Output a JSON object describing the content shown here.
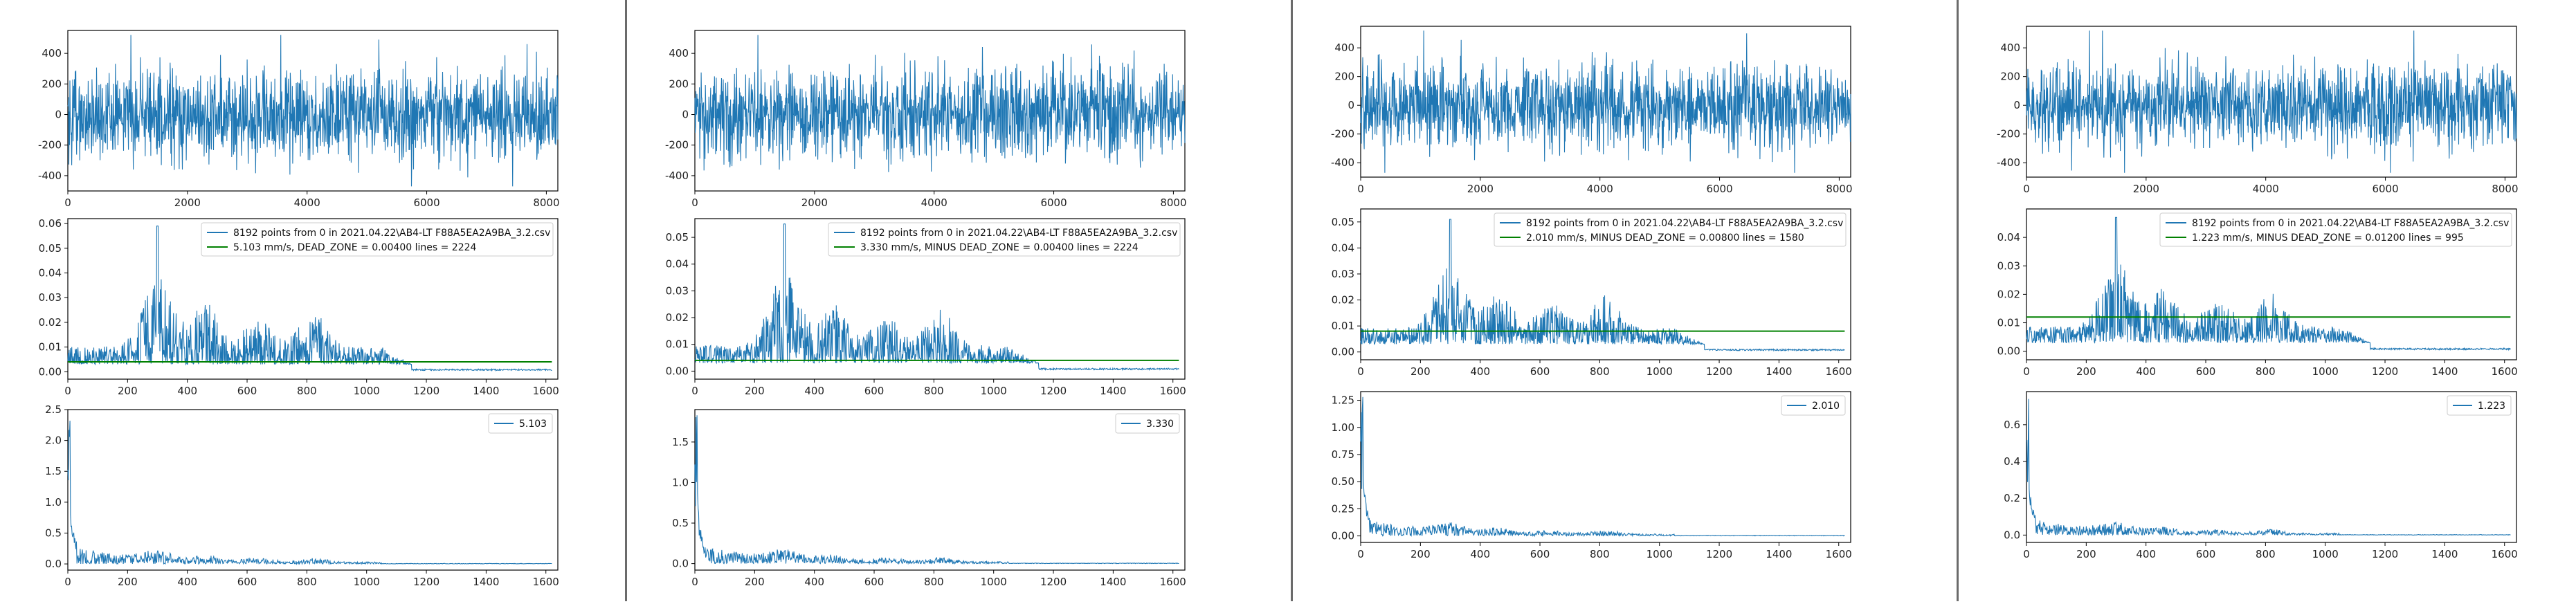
{
  "colors": {
    "series": "#1f77b4",
    "dead_zone": "#008000",
    "axes": "#000000",
    "divider": "#6b6b6b"
  },
  "panels": [
    {
      "signal": {
        "type": "line",
        "xlim": [
          0,
          8192
        ],
        "ylim": [
          -500,
          550
        ],
        "xticks": [
          "0",
          "2000",
          "4000",
          "6000",
          "8000"
        ],
        "yticks": [
          "-400",
          "-200",
          "0",
          "200",
          "400"
        ],
        "amplitude": 250,
        "peak": 520
      },
      "spectrum": {
        "type": "line",
        "xlim": [
          0,
          1640
        ],
        "ylim": [
          -0.003,
          0.062
        ],
        "xticks": [
          "0",
          "200",
          "400",
          "600",
          "800",
          "1000",
          "1200",
          "1400",
          "1600"
        ],
        "yticks": [
          "0.00",
          "0.01",
          "0.02",
          "0.03",
          "0.04",
          "0.05",
          "0.06"
        ],
        "dead_zone": 0.004,
        "peak": 0.059,
        "legend": [
          "8192 points from 0  in  2021.04.22\\AB4-LT F88A5EA2A9BA_3.2.csv",
          "5.103 mm/s,  DEAD_ZONE = 0.00400     lines = 2224"
        ]
      },
      "velocity": {
        "type": "line",
        "xlim": [
          0,
          1640
        ],
        "ylim": [
          -0.1,
          2.5
        ],
        "xticks": [
          "0",
          "200",
          "400",
          "600",
          "800",
          "1000",
          "1200",
          "1400",
          "1600"
        ],
        "yticks": [
          "0.0",
          "0.5",
          "1.0",
          "1.5",
          "2.0",
          "2.5"
        ],
        "peak": 2.32,
        "legend": [
          "5.103"
        ]
      }
    },
    {
      "signal": {
        "type": "line",
        "xlim": [
          0,
          8192
        ],
        "ylim": [
          -500,
          550
        ],
        "xticks": [
          "0",
          "2000",
          "4000",
          "6000",
          "8000"
        ],
        "yticks": [
          "-400",
          "-200",
          "0",
          "200",
          "400"
        ],
        "amplitude": 250,
        "peak": 520
      },
      "spectrum": {
        "type": "line",
        "xlim": [
          0,
          1640
        ],
        "ylim": [
          -0.003,
          0.057
        ],
        "xticks": [
          "0",
          "200",
          "400",
          "600",
          "800",
          "1000",
          "1200",
          "1400",
          "1600"
        ],
        "yticks": [
          "0.00",
          "0.01",
          "0.02",
          "0.03",
          "0.04",
          "0.05"
        ],
        "dead_zone": 0.004,
        "peak": 0.055,
        "legend": [
          "8192 points from 0  in  2021.04.22\\AB4-LT F88A5EA2A9BA_3.2.csv",
          "3.330 mm/s,  MINUS  DEAD_ZONE = 0.00400     lines = 2224"
        ]
      },
      "velocity": {
        "type": "line",
        "xlim": [
          0,
          1640
        ],
        "ylim": [
          -0.08,
          1.9
        ],
        "xticks": [
          "0",
          "200",
          "400",
          "600",
          "800",
          "1000",
          "1200",
          "1400",
          "1600"
        ],
        "yticks": [
          "0.0",
          "0.5",
          "1.0",
          "1.5"
        ],
        "peak": 1.83,
        "legend": [
          "3.330"
        ]
      }
    },
    {
      "signal": {
        "type": "line",
        "xlim": [
          0,
          8192
        ],
        "ylim": [
          -500,
          550
        ],
        "xticks": [
          "0",
          "2000",
          "4000",
          "6000",
          "8000"
        ],
        "yticks": [
          "-400",
          "-200",
          "0",
          "200",
          "400"
        ],
        "amplitude": 250,
        "peak": 520
      },
      "spectrum": {
        "type": "line",
        "xlim": [
          0,
          1640
        ],
        "ylim": [
          -0.003,
          0.055
        ],
        "xticks": [
          "0",
          "200",
          "400",
          "600",
          "800",
          "1000",
          "1200",
          "1400",
          "1600"
        ],
        "yticks": [
          "0.00",
          "0.01",
          "0.02",
          "0.03",
          "0.04",
          "0.05"
        ],
        "dead_zone": 0.008,
        "peak": 0.051,
        "legend": [
          "8192 points from 0  in  2021.04.22\\AB4-LT F88A5EA2A9BA_3.2.csv",
          "2.010 mm/s,  MINUS  DEAD_ZONE = 0.00800     lines = 1580"
        ]
      },
      "velocity": {
        "type": "line",
        "xlim": [
          0,
          1640
        ],
        "ylim": [
          -0.06,
          1.33
        ],
        "xticks": [
          "0",
          "200",
          "400",
          "600",
          "800",
          "1000",
          "1200",
          "1400",
          "1600"
        ],
        "yticks": [
          "0.00",
          "0.25",
          "0.50",
          "0.75",
          "1.00",
          "1.25"
        ],
        "peak": 1.28,
        "legend": [
          "2.010"
        ]
      }
    },
    {
      "signal": {
        "type": "line",
        "xlim": [
          0,
          8192
        ],
        "ylim": [
          -500,
          550
        ],
        "xticks": [
          "0",
          "2000",
          "4000",
          "6000",
          "8000"
        ],
        "yticks": [
          "-400",
          "-200",
          "0",
          "200",
          "400"
        ],
        "amplitude": 250,
        "peak": 520
      },
      "spectrum": {
        "type": "line",
        "xlim": [
          0,
          1640
        ],
        "ylim": [
          -0.003,
          0.05
        ],
        "xticks": [
          "0",
          "200",
          "400",
          "600",
          "800",
          "1000",
          "1200",
          "1400",
          "1600"
        ],
        "yticks": [
          "0.00",
          "0.01",
          "0.02",
          "0.03",
          "0.04"
        ],
        "dead_zone": 0.012,
        "peak": 0.047,
        "legend": [
          "8192 points from 0  in  2021.04.22\\AB4-LT F88A5EA2A9BA_3.2.csv",
          "1.223 mm/s,  MINUS  DEAD_ZONE = 0.01200     lines = 995"
        ]
      },
      "velocity": {
        "type": "line",
        "xlim": [
          0,
          1640
        ],
        "ylim": [
          -0.04,
          0.78
        ],
        "xticks": [
          "0",
          "200",
          "400",
          "600",
          "800",
          "1000",
          "1200",
          "1400",
          "1600"
        ],
        "yticks": [
          "0.0",
          "0.2",
          "0.4",
          "0.6"
        ],
        "peak": 0.74,
        "legend": [
          "1.223"
        ]
      }
    }
  ]
}
